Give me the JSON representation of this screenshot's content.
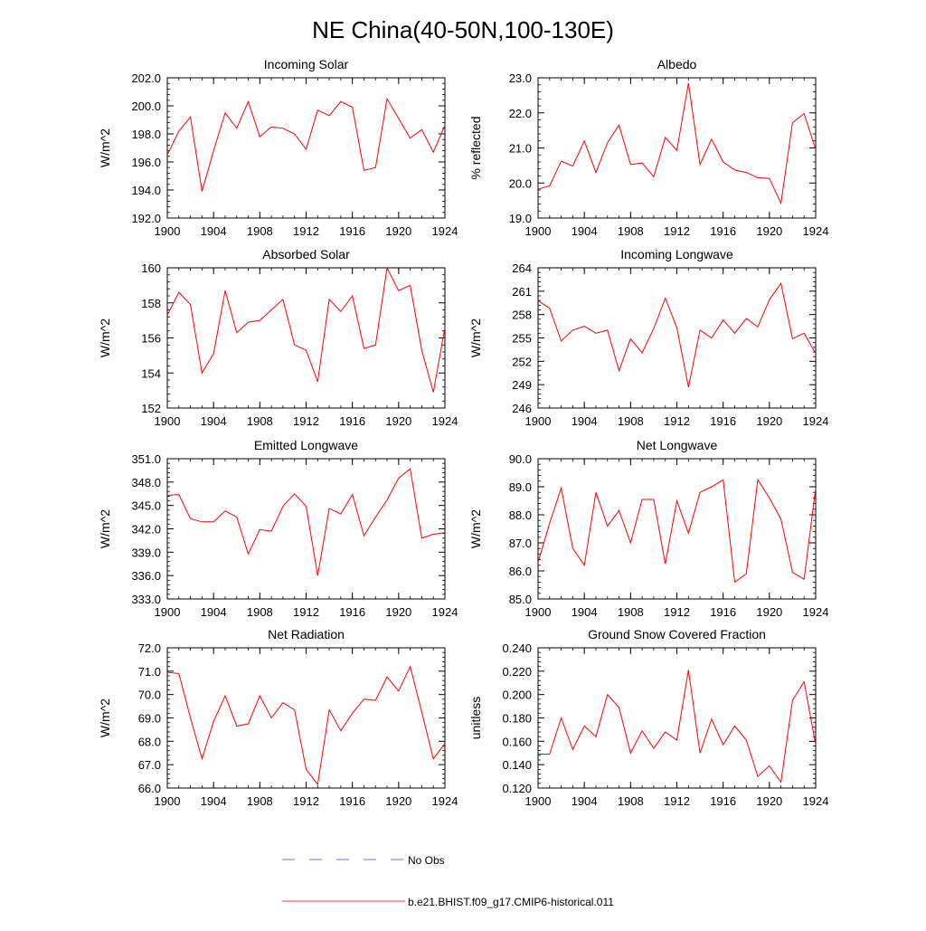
{
  "page_title": "NE China(40-50N,100-130E)",
  "legend": {
    "placement": "bottom-center",
    "entries": [
      {
        "label": "No Obs",
        "color": "#3a3aff",
        "style": "dashed"
      },
      {
        "label": "b.e21.BHIST.f09_g17.CMIP6-historical.011",
        "color": "#ff0000",
        "style": "solid"
      }
    ]
  },
  "chart_data": [
    {
      "type": "line",
      "title": "Incoming Solar",
      "ylabel": "W/m^2",
      "xlabel": "",
      "x": [
        1900,
        1901,
        1902,
        1903,
        1904,
        1905,
        1906,
        1907,
        1908,
        1909,
        1910,
        1911,
        1912,
        1913,
        1914,
        1915,
        1916,
        1917,
        1918,
        1919,
        1920,
        1921,
        1922,
        1923,
        1924
      ],
      "xlim": [
        1900,
        1924
      ],
      "xticks": [
        1900,
        1904,
        1908,
        1912,
        1916,
        1920,
        1924
      ],
      "ylim": [
        192,
        202
      ],
      "yticks": [
        "192.0",
        "194.0",
        "196.0",
        "198.0",
        "200.0",
        "202.0"
      ],
      "ytick_values": [
        192,
        194,
        196,
        198,
        200,
        202
      ],
      "series": [
        {
          "color": "#ff0000",
          "values": [
            196.5,
            198.2,
            199.2,
            193.9,
            196.8,
            199.5,
            198.4,
            200.3,
            197.8,
            198.5,
            198.4,
            198.0,
            196.9,
            199.7,
            199.3,
            200.3,
            199.9,
            195.4,
            195.6,
            200.5,
            199.1,
            197.7,
            198.3,
            196.7,
            198.6
          ]
        }
      ]
    },
    {
      "type": "line",
      "title": "Albedo",
      "ylabel": "% reflected",
      "xlabel": "",
      "x": [
        1900,
        1901,
        1902,
        1903,
        1904,
        1905,
        1906,
        1907,
        1908,
        1909,
        1910,
        1911,
        1912,
        1913,
        1914,
        1915,
        1916,
        1917,
        1918,
        1919,
        1920,
        1921,
        1922,
        1923,
        1924
      ],
      "xlim": [
        1900,
        1924
      ],
      "xticks": [
        1900,
        1904,
        1908,
        1912,
        1916,
        1920,
        1924
      ],
      "ylim": [
        19,
        23
      ],
      "yticks": [
        "19.0",
        "20.0",
        "21.0",
        "22.0",
        "23.0"
      ],
      "ytick_values": [
        19,
        20,
        21,
        22,
        23
      ],
      "series": [
        {
          "color": "#ff0000",
          "values": [
            19.82,
            19.92,
            20.62,
            20.48,
            21.2,
            20.3,
            21.15,
            21.65,
            20.53,
            20.57,
            20.18,
            21.3,
            20.93,
            22.85,
            20.53,
            21.25,
            20.6,
            20.37,
            20.3,
            20.15,
            20.13,
            19.42,
            21.72,
            21.98,
            20.95
          ]
        }
      ]
    },
    {
      "type": "line",
      "title": "Absorbed Solar",
      "ylabel": "W/m^2",
      "xlabel": "",
      "x": [
        1900,
        1901,
        1902,
        1903,
        1904,
        1905,
        1906,
        1907,
        1908,
        1909,
        1910,
        1911,
        1912,
        1913,
        1914,
        1915,
        1916,
        1917,
        1918,
        1919,
        1920,
        1921,
        1922,
        1923,
        1924
      ],
      "xlim": [
        1900,
        1924
      ],
      "xticks": [
        1900,
        1904,
        1908,
        1912,
        1916,
        1920,
        1924
      ],
      "ylim": [
        152,
        160
      ],
      "yticks": [
        "152",
        "154",
        "156",
        "158",
        "160"
      ],
      "ytick_values": [
        152,
        154,
        156,
        158,
        160
      ],
      "series": [
        {
          "color": "#ff0000",
          "values": [
            157.3,
            158.6,
            157.9,
            154.0,
            155.1,
            158.7,
            156.3,
            156.9,
            157.0,
            157.6,
            158.2,
            155.6,
            155.3,
            153.5,
            158.2,
            157.5,
            158.4,
            155.4,
            155.6,
            160.0,
            158.7,
            159.0,
            155.3,
            152.9,
            156.6
          ]
        }
      ]
    },
    {
      "type": "line",
      "title": "Incoming Longwave",
      "ylabel": "W/m^2",
      "xlabel": "",
      "x": [
        1900,
        1901,
        1902,
        1903,
        1904,
        1905,
        1906,
        1907,
        1908,
        1909,
        1910,
        1911,
        1912,
        1913,
        1914,
        1915,
        1916,
        1917,
        1918,
        1919,
        1920,
        1921,
        1922,
        1923,
        1924
      ],
      "xlim": [
        1900,
        1924
      ],
      "xticks": [
        1900,
        1904,
        1908,
        1912,
        1916,
        1920,
        1924
      ],
      "ylim": [
        246,
        264
      ],
      "yticks": [
        "246",
        "249",
        "252",
        "255",
        "258",
        "261",
        "264"
      ],
      "ytick_values": [
        246,
        249,
        252,
        255,
        258,
        261,
        264
      ],
      "series": [
        {
          "color": "#ff0000",
          "values": [
            259.8,
            258.8,
            254.6,
            256.0,
            256.5,
            255.6,
            256.0,
            250.8,
            254.9,
            253.1,
            256.2,
            260.1,
            256.3,
            248.7,
            256.0,
            255.0,
            257.3,
            255.6,
            257.5,
            256.4,
            259.9,
            262.0,
            254.9,
            255.6,
            253.0
          ]
        }
      ]
    },
    {
      "type": "line",
      "title": "Emitted Longwave",
      "ylabel": "W/m^2",
      "xlabel": "",
      "x": [
        1900,
        1901,
        1902,
        1903,
        1904,
        1905,
        1906,
        1907,
        1908,
        1909,
        1910,
        1911,
        1912,
        1913,
        1914,
        1915,
        1916,
        1917,
        1918,
        1919,
        1920,
        1921,
        1922,
        1923,
        1924
      ],
      "xlim": [
        1900,
        1924
      ],
      "xticks": [
        1900,
        1904,
        1908,
        1912,
        1916,
        1920,
        1924
      ],
      "ylim": [
        333,
        351
      ],
      "yticks": [
        "333.0",
        "336.0",
        "339.0",
        "342.0",
        "345.0",
        "348.0",
        "351.0"
      ],
      "ytick_values": [
        333,
        336,
        339,
        342,
        345,
        348,
        351
      ],
      "series": [
        {
          "color": "#ff0000",
          "values": [
            346.3,
            346.4,
            343.3,
            342.9,
            342.9,
            344.3,
            343.5,
            338.8,
            341.9,
            341.7,
            344.9,
            346.5,
            344.9,
            336.0,
            344.6,
            343.9,
            346.4,
            341.1,
            343.5,
            345.7,
            348.5,
            349.7,
            340.8,
            341.3,
            341.5
          ]
        }
      ]
    },
    {
      "type": "line",
      "title": "Net Longwave",
      "ylabel": "W/m^2",
      "xlabel": "",
      "x": [
        1900,
        1901,
        1902,
        1903,
        1904,
        1905,
        1906,
        1907,
        1908,
        1909,
        1910,
        1911,
        1912,
        1913,
        1914,
        1915,
        1916,
        1917,
        1918,
        1919,
        1920,
        1921,
        1922,
        1923,
        1924
      ],
      "xlim": [
        1900,
        1924
      ],
      "xticks": [
        1900,
        1904,
        1908,
        1912,
        1916,
        1920,
        1924
      ],
      "ylim": [
        85,
        90
      ],
      "yticks": [
        "85.0",
        "86.0",
        "87.0",
        "88.0",
        "89.0",
        "90.0"
      ],
      "ytick_values": [
        85,
        86,
        87,
        88,
        89,
        90
      ],
      "series": [
        {
          "color": "#ff0000",
          "values": [
            86.3,
            87.7,
            88.95,
            86.8,
            86.2,
            88.8,
            87.6,
            88.15,
            87.0,
            88.55,
            88.55,
            86.25,
            88.5,
            87.35,
            88.8,
            89.0,
            89.25,
            85.6,
            85.9,
            89.25,
            88.6,
            87.85,
            85.95,
            85.7,
            88.95
          ]
        }
      ]
    },
    {
      "type": "line",
      "title": "Net Radiation",
      "ylabel": "W/m^2",
      "xlabel": "",
      "x": [
        1900,
        1901,
        1902,
        1903,
        1904,
        1905,
        1906,
        1907,
        1908,
        1909,
        1910,
        1911,
        1912,
        1913,
        1914,
        1915,
        1916,
        1917,
        1918,
        1919,
        1920,
        1921,
        1922,
        1923,
        1924
      ],
      "xlim": [
        1900,
        1924
      ],
      "xticks": [
        1900,
        1904,
        1908,
        1912,
        1916,
        1920,
        1924
      ],
      "ylim": [
        66,
        72
      ],
      "yticks": [
        "66.0",
        "67.0",
        "68.0",
        "69.0",
        "70.0",
        "71.0",
        "72.0"
      ],
      "ytick_values": [
        66,
        67,
        68,
        69,
        70,
        71,
        72
      ],
      "series": [
        {
          "color": "#ff0000",
          "values": [
            70.95,
            70.9,
            69.0,
            67.25,
            68.85,
            69.95,
            68.65,
            68.75,
            69.95,
            69.0,
            69.65,
            69.35,
            66.8,
            66.15,
            69.35,
            68.45,
            69.2,
            69.8,
            69.75,
            70.75,
            70.15,
            71.2,
            69.25,
            67.25,
            67.9
          ]
        }
      ]
    },
    {
      "type": "line",
      "title": "Ground Snow Covered Fraction",
      "ylabel": "unitless",
      "xlabel": "",
      "x": [
        1900,
        1901,
        1902,
        1903,
        1904,
        1905,
        1906,
        1907,
        1908,
        1909,
        1910,
        1911,
        1912,
        1913,
        1914,
        1915,
        1916,
        1917,
        1918,
        1919,
        1920,
        1921,
        1922,
        1923,
        1924
      ],
      "xlim": [
        1900,
        1924
      ],
      "xticks": [
        1900,
        1904,
        1908,
        1912,
        1916,
        1920,
        1924
      ],
      "ylim": [
        0.12,
        0.24
      ],
      "yticks": [
        "0.120",
        "0.140",
        "0.160",
        "0.180",
        "0.200",
        "0.220",
        "0.240"
      ],
      "ytick_values": [
        0.12,
        0.14,
        0.16,
        0.18,
        0.2,
        0.22,
        0.24
      ],
      "series": [
        {
          "color": "#ff0000",
          "values": [
            0.149,
            0.149,
            0.18,
            0.153,
            0.173,
            0.164,
            0.2,
            0.189,
            0.15,
            0.169,
            0.154,
            0.168,
            0.161,
            0.221,
            0.15,
            0.179,
            0.157,
            0.173,
            0.161,
            0.13,
            0.139,
            0.125,
            0.195,
            0.211,
            0.157
          ]
        }
      ]
    }
  ]
}
